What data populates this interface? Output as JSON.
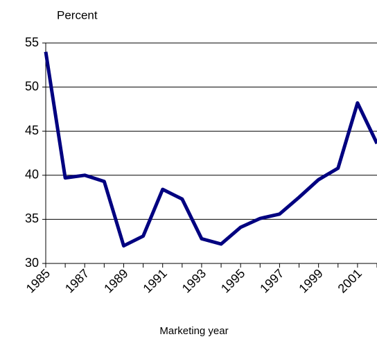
{
  "chart_data": {
    "type": "line",
    "y_label": "Percent",
    "x_label": "Marketing year",
    "x": [
      1985,
      1986,
      1987,
      1988,
      1989,
      1990,
      1991,
      1992,
      1993,
      1994,
      1995,
      1996,
      1997,
      1998,
      1999,
      2000,
      2001,
      2002
    ],
    "series": [
      {
        "color": "#000080",
        "values": [
          54.0,
          39.7,
          40.0,
          39.3,
          32.0,
          33.1,
          38.4,
          37.3,
          32.8,
          32.2,
          34.1,
          35.1,
          35.6,
          37.5,
          39.5,
          40.8,
          48.2,
          43.6
        ]
      }
    ],
    "xlim": [
      1985,
      2002
    ],
    "xticks": [
      1985,
      1987,
      1989,
      1991,
      1993,
      1995,
      1997,
      1999,
      2001
    ],
    "ylim": [
      30,
      55
    ],
    "yticks": [
      30,
      35,
      40,
      45,
      50,
      55
    ],
    "grid": true
  }
}
